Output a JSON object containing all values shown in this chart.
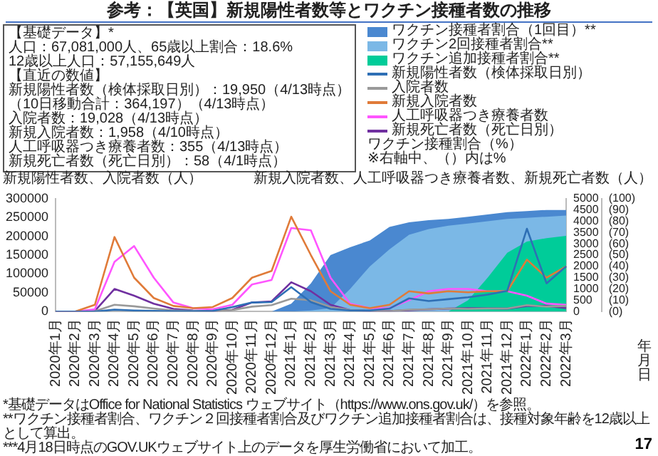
{
  "chart_data": {
    "type": "line",
    "title": "参考：【英国】新規陽性者数等とワクチン接種者数の推移",
    "xlabel": "年月日",
    "ylabel": "新規陽性者数、入院者数（人）",
    "y2label": "新規入院者数、人工呼吸器つき療養者数、新規死亡者数（人）",
    "y3label": "ワクチン接種割合（%）",
    "categories": [
      "2020年1月",
      "2020年2月",
      "2020年3月",
      "2020年4月",
      "2020年5月",
      "2020年6月",
      "2020年7月",
      "2020年8月",
      "2020年9月",
      "2020年10月",
      "2020年11月",
      "2020年12月",
      "2021年1月",
      "2021年2月",
      "2021年3月",
      "2021年4月",
      "2021年5月",
      "2021年6月",
      "2021年7月",
      "2021年8月",
      "2021年9月",
      "2021年10月",
      "2021年11月",
      "2021年12月",
      "2022年1月",
      "2022年2月",
      "2022年3月"
    ],
    "series": [
      {
        "name": "ワクチン接種者割合（1回目）**",
        "type": "area",
        "axis": "y3",
        "color": "#4a88d0",
        "values": [
          null,
          null,
          null,
          null,
          null,
          null,
          null,
          null,
          null,
          null,
          null,
          0,
          7,
          25,
          50,
          57,
          63,
          75,
          79,
          81,
          82,
          84,
          86,
          88,
          89,
          90,
          90
        ]
      },
      {
        "name": "ワクチン2回接種者割合**",
        "type": "area",
        "axis": "y3",
        "color": "#7bb8e6",
        "values": [
          null,
          null,
          null,
          null,
          null,
          null,
          null,
          null,
          null,
          null,
          null,
          null,
          0,
          1,
          3,
          20,
          40,
          55,
          68,
          73,
          76,
          78,
          80,
          82,
          83,
          84,
          85
        ]
      },
      {
        "name": "ワクチン追加接種者割合**",
        "type": "area",
        "axis": "y3",
        "color": "#00cc99",
        "values": [
          null,
          null,
          null,
          null,
          null,
          null,
          null,
          null,
          null,
          null,
          null,
          null,
          null,
          null,
          null,
          null,
          null,
          null,
          null,
          null,
          0,
          10,
          30,
          52,
          62,
          65,
          67
        ]
      },
      {
        "name": "新規陽性者数（検体採取日別）",
        "type": "line",
        "axis": "y",
        "color": "#2e6fb5",
        "values": [
          0,
          0,
          0,
          5000,
          3000,
          2000,
          1000,
          1000,
          2000,
          12000,
          24000,
          25000,
          65000,
          25000,
          7000,
          3000,
          3000,
          8000,
          35000,
          28000,
          33000,
          38000,
          45000,
          55000,
          220000,
          75000,
          120000
        ]
      },
      {
        "name": "入院者数",
        "type": "line",
        "axis": "y",
        "color": "#999999",
        "values": [
          0,
          0,
          1000,
          18000,
          14000,
          8000,
          3000,
          2000,
          1000,
          4000,
          13000,
          17000,
          34000,
          30000,
          12000,
          4000,
          2000,
          1000,
          5000,
          6000,
          8000,
          7000,
          8000,
          8000,
          17000,
          13000,
          15000
        ]
      },
      {
        "name": "新規入院者数",
        "type": "line",
        "axis": "y2",
        "color": "#e07b39",
        "values": [
          0,
          0,
          300,
          3300,
          1500,
          600,
          250,
          150,
          200,
          600,
          1500,
          1800,
          4200,
          2500,
          900,
          300,
          150,
          300,
          900,
          800,
          900,
          850,
          900,
          900,
          2300,
          1500,
          2000
        ]
      },
      {
        "name": "人工呼吸器つき療養者数",
        "type": "line",
        "axis": "y2",
        "color": "#ff55ff",
        "values": [
          0,
          0,
          100,
          2200,
          2900,
          1500,
          400,
          150,
          100,
          300,
          1200,
          1400,
          3700,
          3600,
          1500,
          350,
          150,
          150,
          500,
          900,
          1000,
          1000,
          900,
          900,
          700,
          350,
          300
        ]
      },
      {
        "name": "新規死亡者数（死亡日別）",
        "type": "line",
        "axis": "y2",
        "color": "#7030a0",
        "values": [
          0,
          0,
          30,
          1000,
          700,
          350,
          120,
          50,
          20,
          80,
          400,
          450,
          1300,
          900,
          300,
          60,
          20,
          20,
          60,
          100,
          130,
          150,
          140,
          130,
          250,
          250,
          150
        ]
      }
    ],
    "ylim": [
      0,
      300000
    ],
    "yticks": [
      0,
      50000,
      100000,
      150000,
      200000,
      250000,
      300000
    ],
    "y2lim": [
      0,
      5000
    ],
    "y2ticks": [
      0,
      500,
      1000,
      1500,
      2000,
      2500,
      3000,
      3500,
      4000,
      4500,
      5000
    ],
    "y3lim": [
      0,
      100
    ],
    "y3ticks": [
      {
        "value": 0,
        "label": "(0)"
      },
      {
        "value": 10,
        "label": "(10)"
      },
      {
        "value": 20,
        "label": "(20)"
      },
      {
        "value": 30,
        "label": "(30)"
      },
      {
        "value": 40,
        "label": "(40)"
      },
      {
        "value": 50,
        "label": "(50)"
      },
      {
        "value": 60,
        "label": "(60)"
      },
      {
        "value": 70,
        "label": "(70)"
      },
      {
        "value": 80,
        "label": "(80)"
      },
      {
        "value": 90,
        "label": "(90)"
      },
      {
        "value": 100,
        "label": "(100)"
      }
    ],
    "legend": "top right",
    "annotations": [
      "【基礎データ】*",
      "人口：67,081,000人、65歳以上割合：18.6%",
      "12歳以上人口：57,155,649人",
      "【直近の数値】",
      "新規陽性者数（検体採取日別）：19,950（4/13時点）",
      "（10日移動合計：364,197）（4/13時点）",
      "入院者数：19,028（4/13時点）",
      "新規入院者数：1,958（4/10時点）",
      "人工呼吸器つき療養者数：355（4/13時点）",
      "新規死亡者数（死亡日別）：58（4/1時点）",
      "※右軸中、（）内は%",
      "*基礎データはOffice for National Statistics ウェブサイト（https://www.ons.gov.uk/）を参照。",
      "**ワクチン接種者割合、ワクチン２回接種者割合及びワクチン追加接種者割合は、接種対象年齢を12歳以上として算出。",
      "***4月18日時点のGOV.UKウェブサイト上のデータを厚生労働省において加工。",
      "17"
    ]
  }
}
